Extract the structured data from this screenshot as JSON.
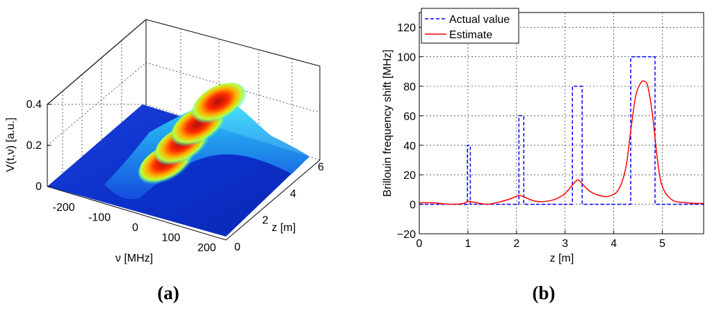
{
  "chart_data": [
    {
      "type": "surface",
      "panel_label": "(a)",
      "zlabel": "V(t,ν) [a.u.]",
      "xlabel": "ν [MHz]",
      "ylabel": "z [m]",
      "z_ticks": [
        "0",
        "0.2",
        "0.4"
      ],
      "nu_ticks": [
        "-200",
        "-100",
        "0",
        "100",
        "200"
      ],
      "zpos_ticks": [
        "0",
        "2",
        "4",
        "6"
      ],
      "nu_range": [
        -250,
        250
      ],
      "z_range": [
        0,
        6
      ],
      "v_range": [
        0,
        0.4
      ],
      "peaks": [
        {
          "z": 1.0,
          "nu": 40,
          "amp": 0.2
        },
        {
          "z": 2.1,
          "nu": 60,
          "amp": 0.22
        },
        {
          "z": 3.2,
          "nu": 80,
          "amp": 0.24
        },
        {
          "z": 4.6,
          "nu": 100,
          "amp": 0.26
        }
      ]
    },
    {
      "type": "line",
      "panel_label": "(b)",
      "xlabel": "z [m]",
      "ylabel": "Brillouin frequency shift [MHz]",
      "xlim": [
        0,
        5.85
      ],
      "ylim": [
        -20,
        130
      ],
      "x_ticks": [
        "0",
        "1",
        "2",
        "3",
        "4",
        "5"
      ],
      "y_ticks": [
        "−20",
        "0",
        "20",
        "40",
        "60",
        "80",
        "100",
        "120"
      ],
      "grid": true,
      "legend_position": "top-left",
      "series": [
        {
          "name": "Actual value",
          "style": "dashed",
          "color": "#0000ff",
          "x": [
            0,
            0.99,
            0.99,
            1.05,
            1.05,
            2.05,
            2.05,
            2.15,
            2.15,
            3.15,
            3.15,
            3.35,
            3.35,
            4.35,
            4.35,
            4.85,
            4.85,
            5.85
          ],
          "y": [
            0,
            0,
            40,
            40,
            0,
            0,
            60,
            60,
            0,
            0,
            80,
            80,
            0,
            0,
            100,
            100,
            0,
            0
          ]
        },
        {
          "name": "Estimate",
          "style": "solid",
          "color": "#ff0000",
          "x": [
            0,
            0.3,
            0.6,
            0.9,
            1.0,
            1.1,
            1.4,
            1.7,
            1.9,
            2.05,
            2.15,
            2.4,
            2.7,
            2.95,
            3.1,
            3.2,
            3.27,
            3.35,
            3.5,
            3.7,
            3.9,
            4.1,
            4.25,
            4.35,
            4.45,
            4.55,
            4.62,
            4.7,
            4.8,
            4.9,
            5.0,
            5.2,
            5.5,
            5.85
          ],
          "y": [
            1,
            1,
            0,
            0.5,
            2,
            1.5,
            0,
            2,
            4,
            6,
            5,
            2,
            2.5,
            6,
            11,
            15,
            16.5,
            14,
            9,
            6,
            5.5,
            10,
            25,
            50,
            73,
            82,
            83.5,
            80,
            60,
            30,
            12,
            3,
            1,
            0.5
          ]
        }
      ]
    }
  ]
}
